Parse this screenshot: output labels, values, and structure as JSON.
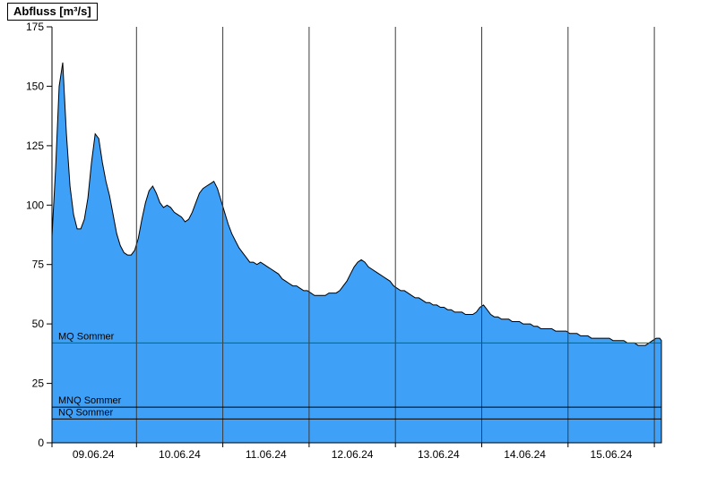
{
  "title": "Abfluss [m³/s]",
  "chart_data": {
    "type": "area",
    "title": "Abfluss [m³/s]",
    "ylabel": "Abfluss [m³/s]",
    "xlabel": "",
    "ylim": [
      0,
      175
    ],
    "y_ticks": [
      0,
      25,
      50,
      75,
      100,
      125,
      150,
      175
    ],
    "x_tick_labels": [
      "09.06.24",
      "10.06.24",
      "11.06.24",
      "12.06.24",
      "13.06.24",
      "14.06.24",
      "15.06.24"
    ],
    "x_range_days": [
      0,
      7.08
    ],
    "grid": "vertical-day-lines",
    "legend": "none",
    "series": [
      {
        "name": "Abfluss",
        "unit": "m³/s",
        "start_hour": 0.5,
        "interval_hours": 1,
        "values": [
          87,
          115,
          150,
          160,
          130,
          108,
          96,
          90,
          90,
          94,
          103,
          118,
          130,
          128,
          118,
          110,
          104,
          96,
          88,
          83,
          80,
          79,
          79,
          81,
          86,
          94,
          101,
          106,
          108,
          105,
          101,
          99,
          100,
          99,
          97,
          96,
          95,
          93,
          94,
          97,
          101,
          105,
          107,
          108,
          109,
          110,
          107,
          102,
          97,
          92,
          88,
          85,
          82,
          80,
          78,
          76,
          76,
          75,
          76,
          75,
          74,
          73,
          72,
          71,
          69,
          68,
          67,
          66,
          66,
          65,
          64,
          64,
          63,
          62,
          62,
          62,
          62,
          63,
          63,
          63,
          64,
          66,
          68,
          71,
          74,
          76,
          77,
          76,
          74,
          73,
          72,
          71,
          70,
          69,
          68,
          66,
          65,
          64,
          64,
          63,
          62,
          61,
          61,
          60,
          59,
          59,
          58,
          58,
          57,
          57,
          56,
          56,
          55,
          55,
          55,
          54,
          54,
          54,
          55,
          57,
          58,
          56,
          54,
          53,
          53,
          52,
          52,
          52,
          51,
          51,
          51,
          50,
          50,
          50,
          49,
          49,
          48,
          48,
          48,
          48,
          47,
          47,
          47,
          47,
          46,
          46,
          46,
          45,
          45,
          45,
          44,
          44,
          44,
          44,
          44,
          44,
          43,
          43,
          43,
          43,
          42,
          42,
          42,
          41,
          41,
          41,
          42,
          43,
          44,
          44,
          43
        ]
      }
    ],
    "reference_lines": [
      {
        "label": "MQ Sommer",
        "value": 42,
        "color": "#007F00"
      },
      {
        "label": "MNQ Sommer",
        "value": 15,
        "color": "#000000"
      },
      {
        "label": "NQ Sommer",
        "value": 10,
        "color": "#000000"
      }
    ],
    "colors": {
      "fill": "#3FA0F8",
      "line": "#000000",
      "grid": "#3b3b3b",
      "axis": "#000000",
      "text": "#000000"
    }
  }
}
